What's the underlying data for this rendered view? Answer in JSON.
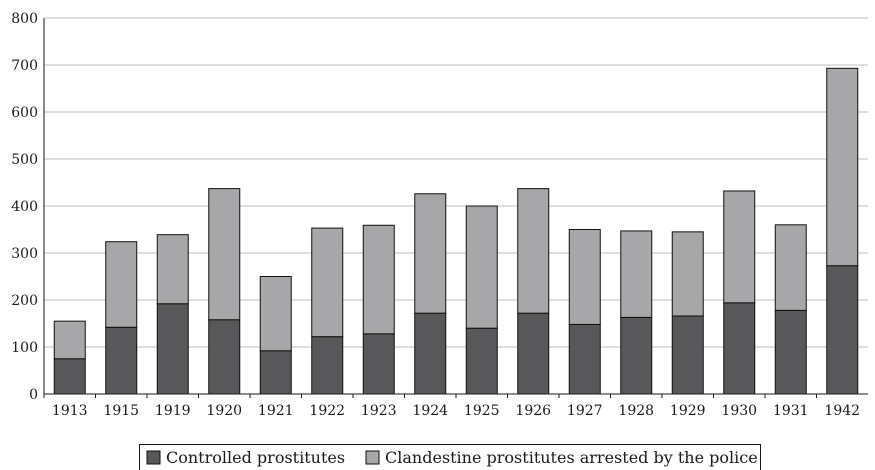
{
  "chart_data": {
    "type": "bar",
    "stacked": true,
    "categories": [
      "1913",
      "1915",
      "1919",
      "1920",
      "1921",
      "1922",
      "1923",
      "1924",
      "1925",
      "1926",
      "1927",
      "1928",
      "1929",
      "1930",
      "1931",
      "1942"
    ],
    "series": [
      {
        "name": "Controlled prostitutes",
        "color": "#58585a",
        "values": [
          75,
          142,
          192,
          158,
          92,
          122,
          128,
          172,
          140,
          172,
          148,
          163,
          166,
          194,
          178,
          273
        ]
      },
      {
        "name": "Clandestine prostitutes arrested by the police",
        "color": "#a7a7a9",
        "values": [
          80,
          182,
          147,
          279,
          158,
          231,
          231,
          254,
          260,
          265,
          202,
          184,
          179,
          238,
          182,
          420
        ]
      }
    ],
    "ylim": [
      0,
      800
    ],
    "yticks": [
      0,
      100,
      200,
      300,
      400,
      500,
      600,
      700,
      800
    ],
    "grid": true,
    "legend": "bottom",
    "title": "",
    "xlabel": "",
    "ylabel": ""
  }
}
